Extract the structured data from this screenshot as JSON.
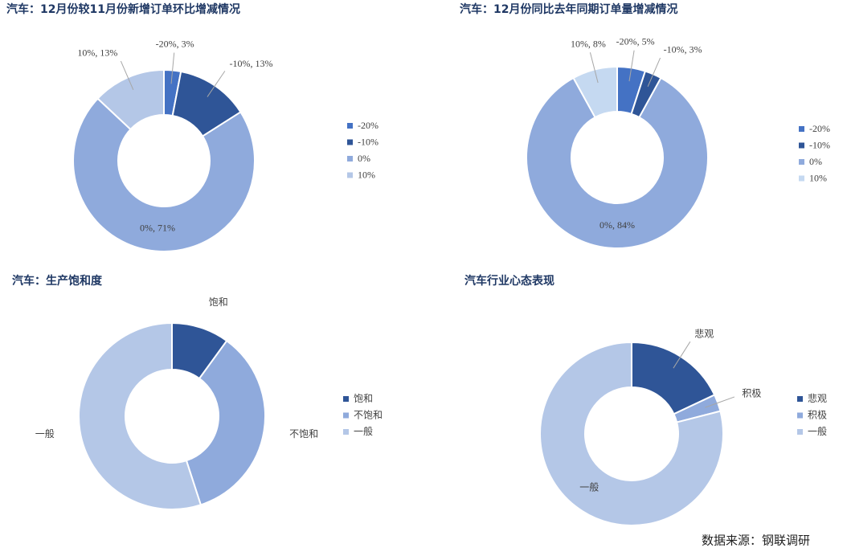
{
  "chart_data": [
    {
      "type": "donut",
      "title": "汽车：12月份较11月份新增订单环比增减情况",
      "categories": [
        "-20%",
        "-10%",
        "0%",
        "10%"
      ],
      "values": [
        3,
        13,
        71,
        13
      ],
      "value_labels": [
        "-20%, 3%",
        "-10%, 13%",
        "0%, 71%",
        "10%, 13%"
      ],
      "colors": [
        "#4472c4",
        "#2f5597",
        "#8faadc",
        "#b4c7e7"
      ]
    },
    {
      "type": "donut",
      "title": "汽车：12月份同比去年同期订单量增减情况",
      "categories": [
        "-20%",
        "-10%",
        "0%",
        "10%"
      ],
      "values": [
        5,
        3,
        84,
        8
      ],
      "value_labels": [
        "-20%, 5%",
        "-10%, 3%",
        "0%, 84%",
        "10%, 8%"
      ],
      "colors": [
        "#4472c4",
        "#2f5597",
        "#8faadc",
        "#c5d9f1"
      ]
    },
    {
      "type": "donut",
      "title": "汽车：生产饱和度",
      "categories": [
        "饱和",
        "不饱和",
        "一般"
      ],
      "values": [
        10,
        35,
        55
      ],
      "colors": [
        "#2f5597",
        "#8faadc",
        "#b4c7e7"
      ]
    },
    {
      "type": "donut",
      "title": "汽车行业心态表现",
      "categories": [
        "悲观",
        "积极",
        "一般"
      ],
      "values": [
        18,
        3,
        79
      ],
      "colors": [
        "#2f5597",
        "#8faadc",
        "#b4c7e7"
      ]
    }
  ],
  "source": "数据来源：钢联调研"
}
